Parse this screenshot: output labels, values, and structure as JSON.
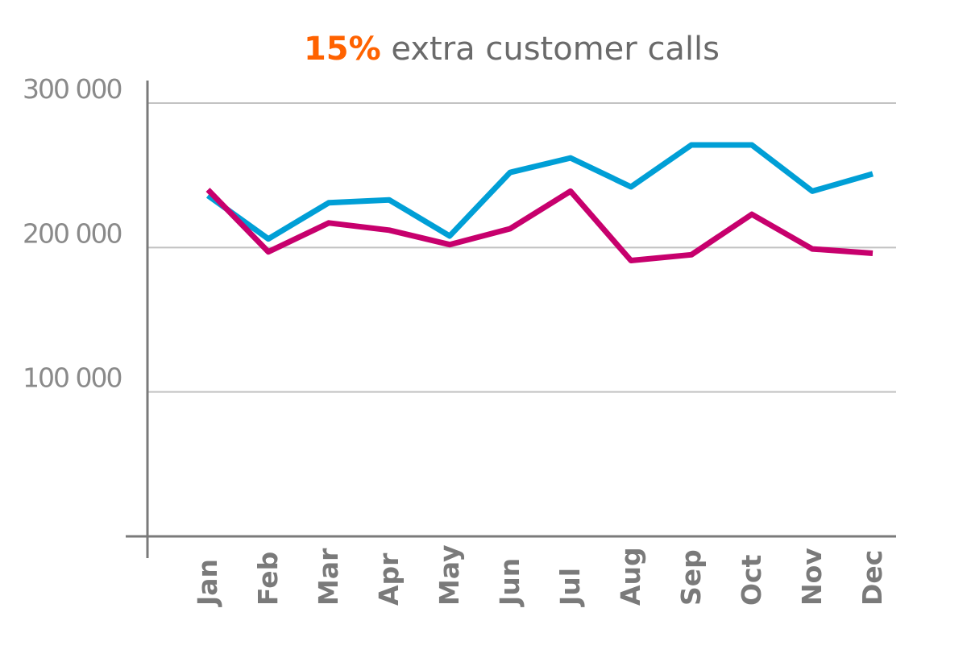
{
  "chart_data": {
    "type": "line",
    "title": {
      "highlight": "15%",
      "rest": " extra customer calls"
    },
    "xlabel": "",
    "ylabel": "",
    "categories": [
      "Jan",
      "Feb",
      "Mar",
      "Apr",
      "May",
      "Jun",
      "Jul",
      "Aug",
      "Sep",
      "Oct",
      "Nov",
      "Dec"
    ],
    "ylim": [
      0,
      300000
    ],
    "yticks": [
      {
        "value": 100000,
        "label": "100 000"
      },
      {
        "value": 200000,
        "label": "200 000"
      },
      {
        "value": 300000,
        "label": "300 000"
      }
    ],
    "grid": true,
    "series": [
      {
        "color": "#009fd6",
        "values": [
          236000,
          206000,
          231000,
          233000,
          208000,
          252000,
          262000,
          242000,
          271000,
          271000,
          239000,
          251000
        ]
      },
      {
        "color": "#c7006d",
        "values": [
          240000,
          197000,
          217000,
          212000,
          202000,
          213000,
          239000,
          191000,
          195000,
          223000,
          199000,
          196000
        ]
      }
    ],
    "colors": {
      "highlight": "#ff6200",
      "title_text": "#6a6a6a",
      "axis": "#7a7a7a",
      "grid": "#c2c2c2"
    }
  }
}
